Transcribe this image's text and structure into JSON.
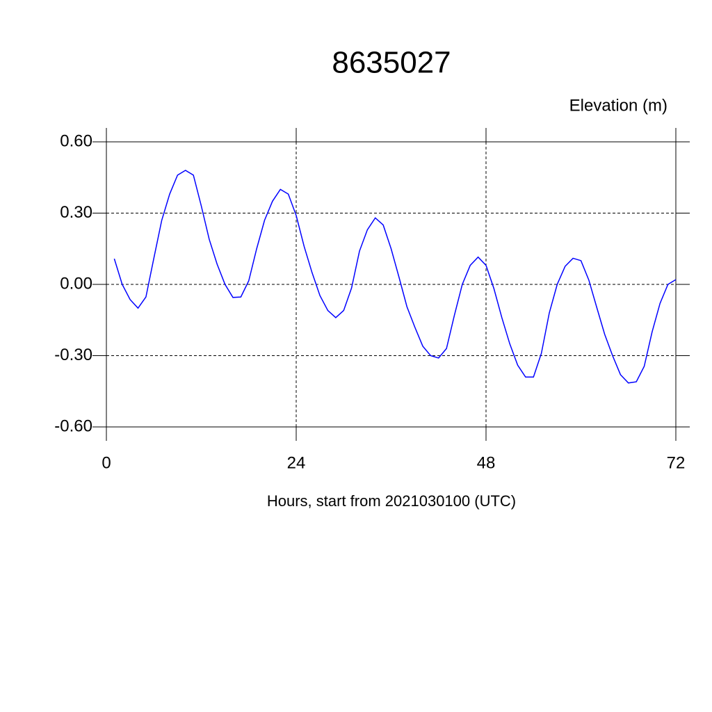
{
  "chart_data": {
    "type": "line",
    "title": "8635027",
    "ylabel": "Elevation (m)",
    "xlabel": "Hours, start from 2021030100 (UTC)",
    "x": [
      1,
      2,
      3,
      4,
      5,
      6,
      7,
      8,
      9,
      10,
      11,
      12,
      13,
      14,
      15,
      16,
      17,
      18,
      19,
      20,
      21,
      22,
      23,
      24,
      25,
      26,
      27,
      28,
      29,
      30,
      31,
      32,
      33,
      34,
      35,
      36,
      37,
      38,
      39,
      40,
      41,
      42,
      43,
      44,
      45,
      46,
      47,
      48,
      49,
      50,
      51,
      52,
      53,
      54,
      55,
      56,
      57,
      58,
      59,
      60,
      61,
      62,
      63,
      64,
      65,
      66,
      67,
      68,
      69,
      70,
      71,
      72
    ],
    "series": [
      {
        "name": "Elevation",
        "color": "#0000ff",
        "values": [
          0.108,
          0.0,
          -0.064,
          -0.1,
          -0.053,
          0.11,
          0.27,
          0.38,
          0.46,
          0.48,
          0.46,
          0.33,
          0.19,
          0.085,
          0.0,
          -0.055,
          -0.053,
          0.015,
          0.15,
          0.27,
          0.35,
          0.4,
          0.38,
          0.29,
          0.16,
          0.05,
          -0.047,
          -0.11,
          -0.14,
          -0.11,
          -0.015,
          0.14,
          0.23,
          0.28,
          0.25,
          0.15,
          0.03,
          -0.094,
          -0.18,
          -0.26,
          -0.3,
          -0.31,
          -0.27,
          -0.13,
          0.0,
          0.08,
          0.115,
          0.08,
          -0.018,
          -0.14,
          -0.25,
          -0.34,
          -0.39,
          -0.39,
          -0.29,
          -0.12,
          0.0,
          0.076,
          0.11,
          0.1,
          0.018,
          -0.097,
          -0.21,
          -0.3,
          -0.38,
          -0.415,
          -0.41,
          -0.345,
          -0.2,
          -0.08,
          0.0,
          0.02
        ]
      }
    ],
    "xlim": [
      0,
      72
    ],
    "xticks": [
      0,
      24,
      48,
      72
    ],
    "ylim": [
      -0.6,
      0.6
    ],
    "yticks": [
      {
        "value": -0.6,
        "label": "-0.60"
      },
      {
        "value": -0.3,
        "label": "-0.30"
      },
      {
        "value": 0,
        "label": "0.00"
      },
      {
        "value": 0.3,
        "label": "0.30"
      },
      {
        "value": 0.6,
        "label": "0.60"
      }
    ],
    "grid": true
  }
}
